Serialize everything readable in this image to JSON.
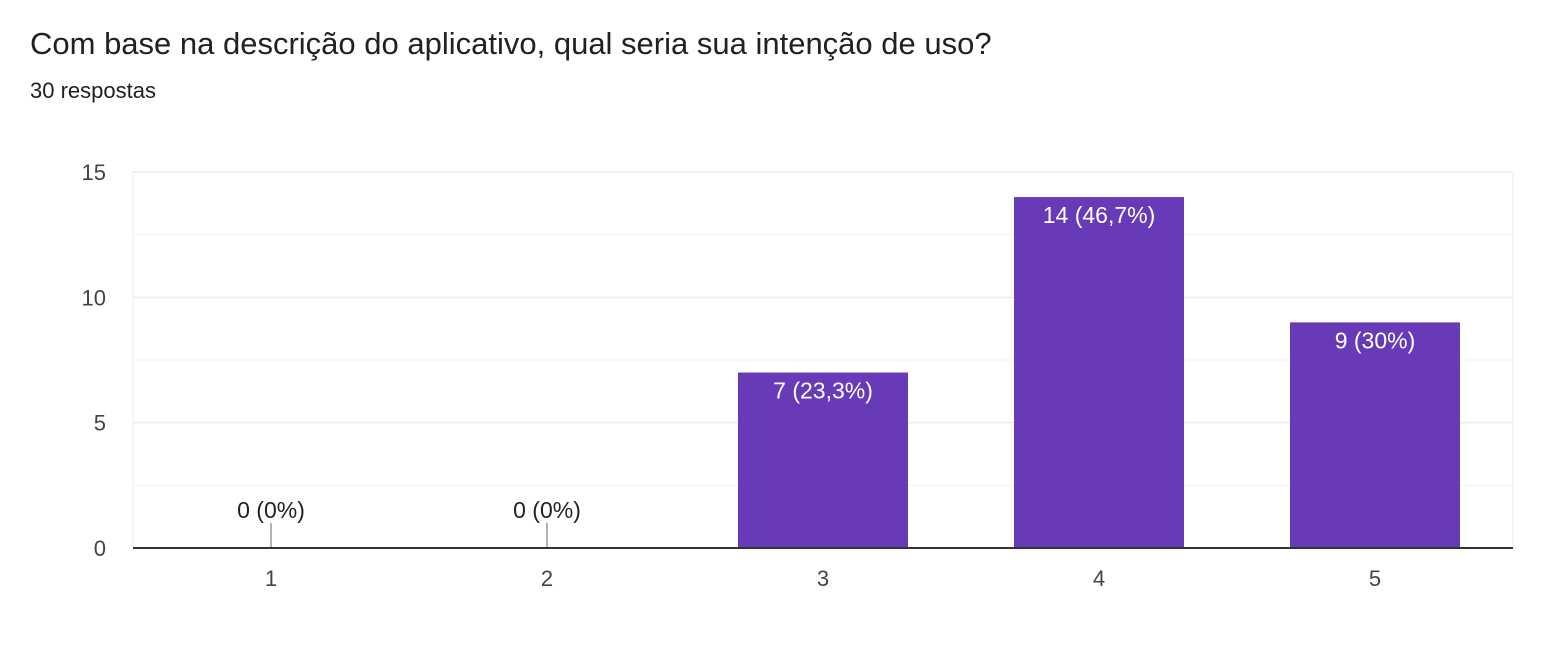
{
  "header": {
    "title": "Com base na descrição do aplicativo, qual seria sua intenção de uso?",
    "responses": "30 respostas"
  },
  "chart_data": {
    "type": "bar",
    "categories": [
      "1",
      "2",
      "3",
      "4",
      "5"
    ],
    "values": [
      0,
      0,
      7,
      14,
      9
    ],
    "data_labels": [
      "0 (0%)",
      "0 (0%)",
      "7 (23,3%)",
      "14 (46,7%)",
      "9 (30%)"
    ],
    "yticks": [
      0,
      5,
      10,
      15
    ],
    "ylim": [
      0,
      15
    ],
    "grid": true,
    "bar_color": "#673ab7"
  }
}
